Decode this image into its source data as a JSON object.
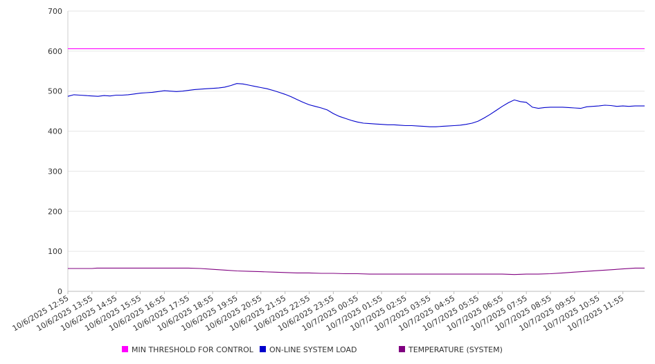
{
  "chart_data": {
    "type": "line",
    "title": "",
    "xlabel": "",
    "ylabel": "",
    "ylim": [
      0,
      700
    ],
    "yticks": [
      0,
      100,
      200,
      300,
      400,
      500,
      600,
      700
    ],
    "grid": true,
    "legend_position": "bottom",
    "x_tick_labels": [
      "10/6/2025 12:55",
      "10/6/2025 13:55",
      "10/6/2025 14:55",
      "10/6/2025 15:55",
      "10/6/2025 16:55",
      "10/6/2025 17:55",
      "10/6/2025 18:55",
      "10/6/2025 19:55",
      "10/6/2025 20:55",
      "10/6/2025 21:55",
      "10/6/2025 22:55",
      "10/6/2025 23:55",
      "10/7/2025 00:55",
      "10/7/2025 01:55",
      "10/7/2025 02:55",
      "10/7/2025 03:55",
      "10/7/2025 04:55",
      "10/7/2025 05:55",
      "10/7/2025 06:55",
      "10/7/2025 07:55",
      "10/7/2025 08:55",
      "10/7/2025 09:55",
      "10/7/2025 10:55",
      "10/7/2025 11:55"
    ],
    "x_hours_total": 23.9,
    "series": [
      {
        "name": "MIN THRESHOLD FOR CONTROL",
        "color": "#ff00ff",
        "points": [
          [
            0,
            606
          ],
          [
            23.9,
            606
          ]
        ]
      },
      {
        "name": "ON-LINE SYSTEM LOAD",
        "color": "#0000cc",
        "points": [
          [
            0,
            487
          ],
          [
            0.25,
            491
          ],
          [
            0.5,
            490
          ],
          [
            0.75,
            489
          ],
          [
            1.0,
            488
          ],
          [
            1.25,
            487
          ],
          [
            1.5,
            489
          ],
          [
            1.75,
            488
          ],
          [
            2.0,
            490
          ],
          [
            2.25,
            490
          ],
          [
            2.5,
            491
          ],
          [
            2.75,
            493
          ],
          [
            3.0,
            495
          ],
          [
            3.25,
            496
          ],
          [
            3.5,
            497
          ],
          [
            3.75,
            499
          ],
          [
            4.0,
            501
          ],
          [
            4.25,
            500
          ],
          [
            4.5,
            499
          ],
          [
            4.75,
            500
          ],
          [
            5.0,
            502
          ],
          [
            5.25,
            504
          ],
          [
            5.5,
            505
          ],
          [
            5.75,
            506
          ],
          [
            6.0,
            507
          ],
          [
            6.25,
            508
          ],
          [
            6.5,
            510
          ],
          [
            6.75,
            514
          ],
          [
            7.0,
            519
          ],
          [
            7.25,
            518
          ],
          [
            7.5,
            515
          ],
          [
            7.75,
            512
          ],
          [
            8.0,
            509
          ],
          [
            8.25,
            506
          ],
          [
            8.5,
            502
          ],
          [
            8.75,
            497
          ],
          [
            9.0,
            492
          ],
          [
            9.25,
            486
          ],
          [
            9.5,
            479
          ],
          [
            9.75,
            472
          ],
          [
            10.0,
            466
          ],
          [
            10.25,
            462
          ],
          [
            10.5,
            458
          ],
          [
            10.75,
            453
          ],
          [
            11.0,
            444
          ],
          [
            11.25,
            437
          ],
          [
            11.5,
            432
          ],
          [
            11.75,
            427
          ],
          [
            12.0,
            423
          ],
          [
            12.25,
            420
          ],
          [
            12.5,
            419
          ],
          [
            12.75,
            418
          ],
          [
            13.0,
            417
          ],
          [
            13.25,
            416
          ],
          [
            13.5,
            416
          ],
          [
            13.75,
            415
          ],
          [
            14.0,
            414
          ],
          [
            14.25,
            414
          ],
          [
            14.5,
            413
          ],
          [
            14.75,
            412
          ],
          [
            15.0,
            411
          ],
          [
            15.25,
            411
          ],
          [
            15.5,
            412
          ],
          [
            15.75,
            413
          ],
          [
            16.0,
            414
          ],
          [
            16.25,
            415
          ],
          [
            16.5,
            417
          ],
          [
            16.75,
            420
          ],
          [
            17.0,
            425
          ],
          [
            17.25,
            433
          ],
          [
            17.5,
            442
          ],
          [
            17.75,
            452
          ],
          [
            18.0,
            462
          ],
          [
            18.25,
            471
          ],
          [
            18.5,
            478
          ],
          [
            18.75,
            474
          ],
          [
            19.0,
            472
          ],
          [
            19.25,
            460
          ],
          [
            19.5,
            457
          ],
          [
            19.75,
            459
          ],
          [
            20.0,
            460
          ],
          [
            20.25,
            460
          ],
          [
            20.5,
            460
          ],
          [
            20.75,
            459
          ],
          [
            21.0,
            458
          ],
          [
            21.25,
            457
          ],
          [
            21.5,
            461
          ],
          [
            21.75,
            462
          ],
          [
            22.0,
            463
          ],
          [
            22.25,
            465
          ],
          [
            22.5,
            464
          ],
          [
            22.75,
            462
          ],
          [
            23.0,
            463
          ],
          [
            23.25,
            462
          ],
          [
            23.5,
            463
          ],
          [
            23.9,
            463
          ]
        ]
      },
      {
        "name": "TEMPERATURE (SYSTEM)",
        "color": "#800080",
        "points": [
          [
            0,
            57
          ],
          [
            1.0,
            57
          ],
          [
            1.2,
            58
          ],
          [
            5.0,
            58
          ],
          [
            5.5,
            57
          ],
          [
            6.0,
            55
          ],
          [
            6.5,
            53
          ],
          [
            7.0,
            51
          ],
          [
            7.5,
            50
          ],
          [
            8.0,
            49
          ],
          [
            8.5,
            48
          ],
          [
            9.0,
            47
          ],
          [
            9.5,
            46
          ],
          [
            10.0,
            46
          ],
          [
            10.5,
            45
          ],
          [
            11.0,
            45
          ],
          [
            11.5,
            44
          ],
          [
            12.0,
            44
          ],
          [
            12.5,
            43
          ],
          [
            13.0,
            43
          ],
          [
            14.0,
            43
          ],
          [
            15.0,
            43
          ],
          [
            16.0,
            43
          ],
          [
            17.0,
            43
          ],
          [
            18.0,
            43
          ],
          [
            18.5,
            42
          ],
          [
            19.0,
            43
          ],
          [
            19.5,
            43
          ],
          [
            20.0,
            44
          ],
          [
            20.5,
            46
          ],
          [
            21.0,
            48
          ],
          [
            21.5,
            50
          ],
          [
            22.0,
            52
          ],
          [
            22.5,
            54
          ],
          [
            23.0,
            56
          ],
          [
            23.5,
            58
          ],
          [
            23.9,
            58
          ]
        ]
      }
    ]
  }
}
